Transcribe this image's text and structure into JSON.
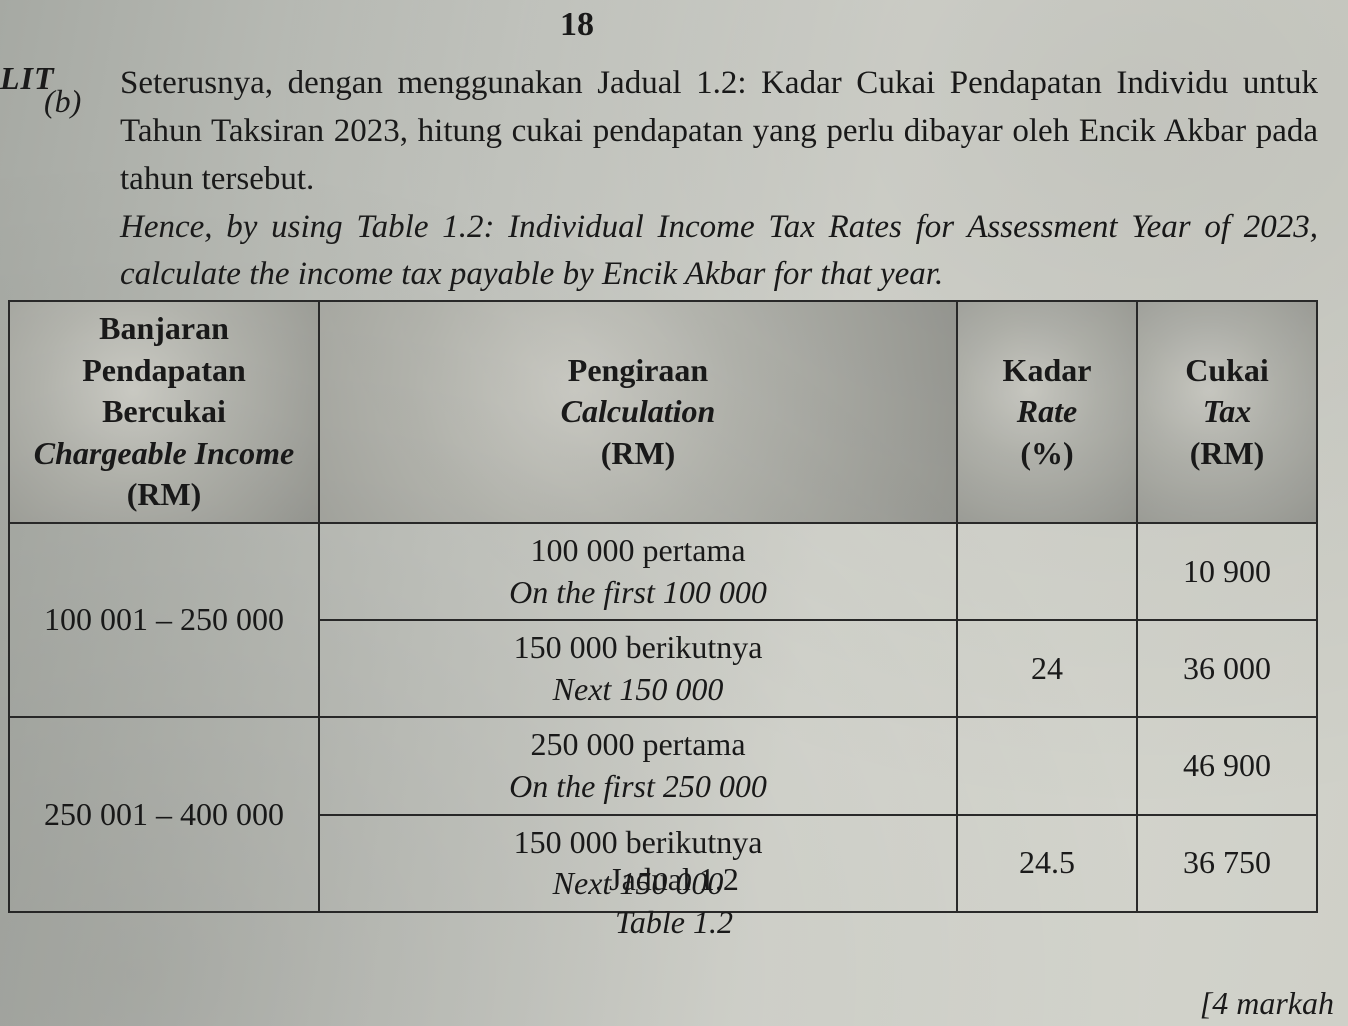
{
  "page_number": "18",
  "fragment_left": "LIT",
  "question_label": "(b)",
  "paragraph_ms_1": "Seterusnya, dengan menggunakan Jadual 1.2: Kadar Cukai Pendapatan Individu untuk Tahun Taksiran 2023, hitung cukai pendapatan yang perlu dibayar oleh Encik Akbar pada tahun tersebut.",
  "paragraph_en_1": "Hence, by using Table 1.2: Individual Income Tax Rates for Assessment Year of 2023, calculate the income tax payable by Encik Akbar for that year.",
  "table": {
    "headers": {
      "income_ms": "Banjaran Pendapatan Bercukai",
      "income_en": "Chargeable Income",
      "income_unit": "(RM)",
      "calc_ms": "Pengiraan",
      "calc_en": "Calculation",
      "calc_unit": "(RM)",
      "rate_ms": "Kadar",
      "rate_en": "Rate",
      "rate_unit": "(%)",
      "tax_ms": "Cukai",
      "tax_en": "Tax",
      "tax_unit": "(RM)"
    },
    "rows": [
      {
        "income_range": "100 001 – 250 000",
        "lines": [
          {
            "calc_ms": "100 000 pertama",
            "calc_en": "On the first 100 000",
            "rate": "",
            "tax": "10 900"
          },
          {
            "calc_ms": "150 000 berikutnya",
            "calc_en": "Next 150 000",
            "rate": "24",
            "tax": "36 000"
          }
        ]
      },
      {
        "income_range": "250 001 – 400 000",
        "lines": [
          {
            "calc_ms": "250 000 pertama",
            "calc_en": "On the first 250 000",
            "rate": "",
            "tax": "46 900"
          },
          {
            "calc_ms": "150 000 berikutnya",
            "calc_en": "Next 150 000",
            "rate": "24.5",
            "tax": "36 750"
          }
        ]
      }
    ],
    "caption_ms": "Jadual 1.2",
    "caption_en": "Table 1.2"
  },
  "marks": "[4 markah",
  "style": {
    "font_family": "Times New Roman",
    "body_fontsize_pt": 24,
    "header_bg": "#b6b7b0",
    "border_color": "#2a2a2a",
    "page_bg_gradient": [
      "#a6a9a3",
      "#d6d7d0"
    ]
  }
}
